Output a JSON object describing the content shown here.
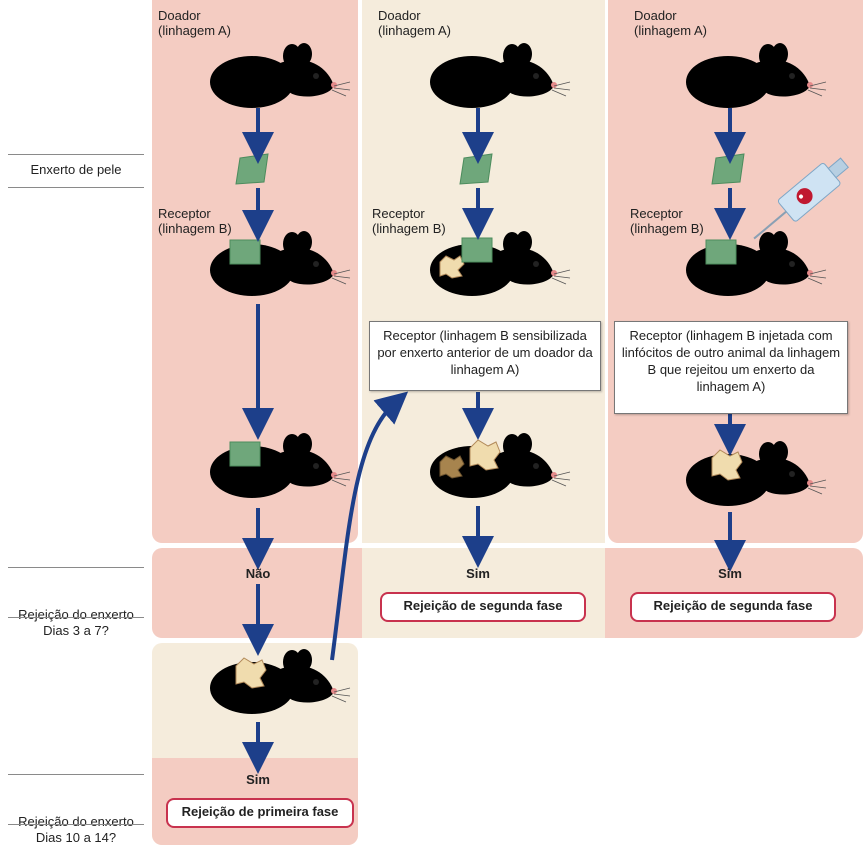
{
  "colors": {
    "panel_pink": "#f4ccc2",
    "panel_cream": "#f5ecdc",
    "mouse_green": "#79b98a",
    "mouse_orange": "#f3a176",
    "graft_green": "#6fa77b",
    "arrow_blue": "#1d3f8a",
    "pill_border": "#c8324e"
  },
  "side_labels": {
    "skin_graft": "Enxerto de pele",
    "rejection_early": "Rejeição do enxerto\nDias 3 a 7?",
    "rejection_late": "Rejeição do enxerto\nDias 10 a 14?"
  },
  "columns": [
    {
      "donor": "Doador\n(linhagem A)",
      "recipient": "Receptor\n(linhagem B)",
      "answer_early": "Não",
      "answer_late": "Sim",
      "result": "Rejeição de primeira fase"
    },
    {
      "donor": "Doador\n(linhagem A)",
      "recipient": "Receptor\n(linhagem B)",
      "box": "Receptor (linhagem B sensibilizada por enxerto anterior de um doador da linhagem A)",
      "answer": "Sim",
      "result": "Rejeição de segunda fase"
    },
    {
      "donor": "Doador\n(linhagem A)",
      "recipient": "Receptor\n(linhagem B)",
      "box": "Receptor (linhagem B injetada com linfócitos de outro animal da linhagem B que rejeitou um enxerto da linhagem A)",
      "answer": "Sim",
      "result": "Rejeição de segunda fase"
    }
  ],
  "icons": [
    "mouse-icon",
    "skin-graft-icon",
    "syringe-icon",
    "flow-arrow"
  ]
}
